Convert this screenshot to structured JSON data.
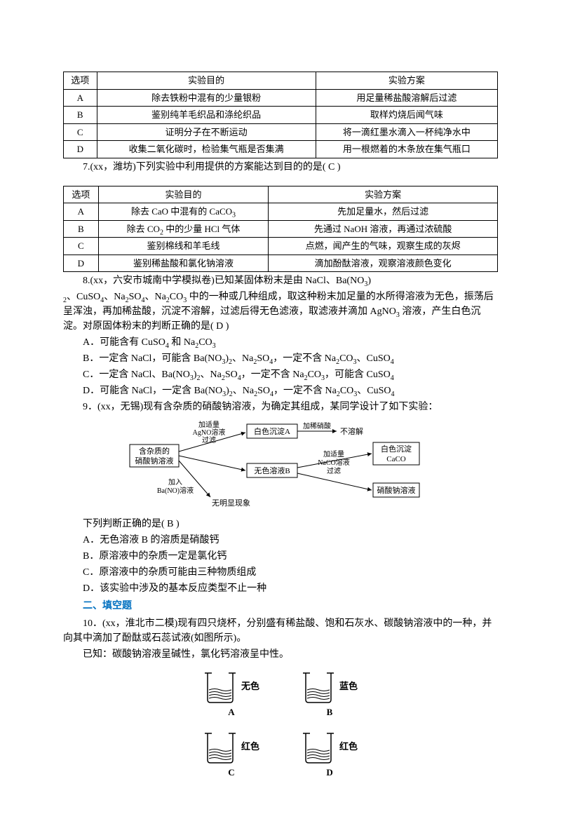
{
  "table1": {
    "headers": [
      "选项",
      "实验目的",
      "实验方案"
    ],
    "rows": [
      [
        "A",
        "除去铁粉中混有的少量银粉",
        "用足量稀盐酸溶解后过滤"
      ],
      [
        "B",
        "鉴别纯羊毛织品和涤纶织品",
        "取样灼烧后闻气味"
      ],
      [
        "C",
        "证明分子在不断运动",
        "将一滴红墨水滴入一杯纯净水中"
      ],
      [
        "D",
        "收集二氧化碳时，检验集气瓶是否集满",
        "用一根燃着的木条放在集气瓶口"
      ]
    ]
  },
  "q7": "7.(xx，潍坊)下列实验中利用提供的方案能达到目的的是( C )",
  "table2": {
    "headers": [
      "选项",
      "实验目的",
      "实验方案"
    ],
    "rows": [
      [
        "A",
        "除去 CaO 中混有的 CaCO_3",
        "先加足量水，然后过滤"
      ],
      [
        "B",
        "除去 CO_2 中的少量 HCl 气体",
        "先通过 NaOH 溶液，再通过浓硫酸"
      ],
      [
        "C",
        "鉴别棉线和羊毛线",
        "点燃，闻产生的气味，观察生成的灰烬"
      ],
      [
        "D",
        "鉴别稀盐酸和氯化钠溶液",
        "滴加酚酞溶液，观察溶液颜色变化"
      ]
    ]
  },
  "q8_lead": "8.(xx，六安市城南中学模拟卷)已知某固体粉末是由 NaCl、Ba(NO_3)",
  "q8_cont": "_2、CuSO_4、Na_2SO_4、Na_2CO_3 中的一种或几种组成，取这种粉末加足量的水所得溶液为无色，振荡后呈浑浊，再加稀盐酸，沉淀不溶解，过滤后得无色滤液，取滤液并滴加 AgNO_3 溶液，产生白色沉淀。对原固体粉末的判断正确的是( D )",
  "q8_options": [
    "A．可能含有 CuSO_4 和 Na_2CO_3",
    "B．一定含 NaCl，可能含 Ba(NO_3)_2、Na_2SO_4，一定不含 Na_2CO_3、CuSO_4",
    "C．一定含 NaCl、Ba(NO_3)_2、Na_2SO_4，一定不含 Na_2CO_3，可能含 CuSO_4",
    "D．可能含 NaCl，一定含 Ba(NO_3)_2、Na_2SO_4，一定不含 Na_2CO_3、CuSO_4"
  ],
  "q9_lead": "9．(xx，无锡)现有含杂质的硝酸钠溶液，为确定其组成，某同学设计了如下实验：",
  "flowchart": {
    "box_left_top": [
      "含杂质的",
      "硝酸钠溶液"
    ],
    "arrow_left_top_label": [
      "加适量",
      "AgNO_3溶液",
      "过滤"
    ],
    "arrow_left_bottom_label": [
      "加入",
      "Ba(NO_3)_2溶液"
    ],
    "left_bottom_result": "无明显现象",
    "box_top": "白色沉淀A",
    "arrow_top_right_label": "加稀硝酸",
    "top_right_result": "不溶解",
    "box_mid": "无色溶液B",
    "arrow_mid_right_label": [
      "加适量",
      "Na_2CO_3溶液",
      "过滤"
    ],
    "box_right_top": [
      "白色沉淀",
      "CaCO_3"
    ],
    "box_right_bottom": "硝酸钠溶液"
  },
  "q9_prompt": "下列判断正确的是( B )",
  "q9_options": [
    "A．无色溶液 B 的溶质是硝酸钙",
    "B．原溶液中的杂质一定是氯化钙",
    "C．原溶液中的杂质可能由三种物质组成",
    "D．该实验中涉及的基本反应类型不止一种"
  ],
  "section2": "二、填空题",
  "q10_lead": "10．(xx，淮北市二模)现有四只烧杯，分别盛有稀盐酸、饱和石灰水、碳酸钠溶液中的一种，并向其中滴加了酚酞或石蕊试液(如图所示)。",
  "q10_note": "已知：碳酸钠溶液呈碱性，氯化钙溶液呈中性。",
  "beakers": {
    "labels": {
      "A": "无色",
      "B": "蓝色",
      "C": "红色",
      "D": "红色"
    },
    "label_colors": {
      "A": "#000",
      "B": "#000",
      "C": "#000",
      "D": "#000"
    }
  },
  "colors": {
    "text": "#000000",
    "accent": "#0070c0",
    "border": "#000000",
    "background": "#ffffff"
  }
}
